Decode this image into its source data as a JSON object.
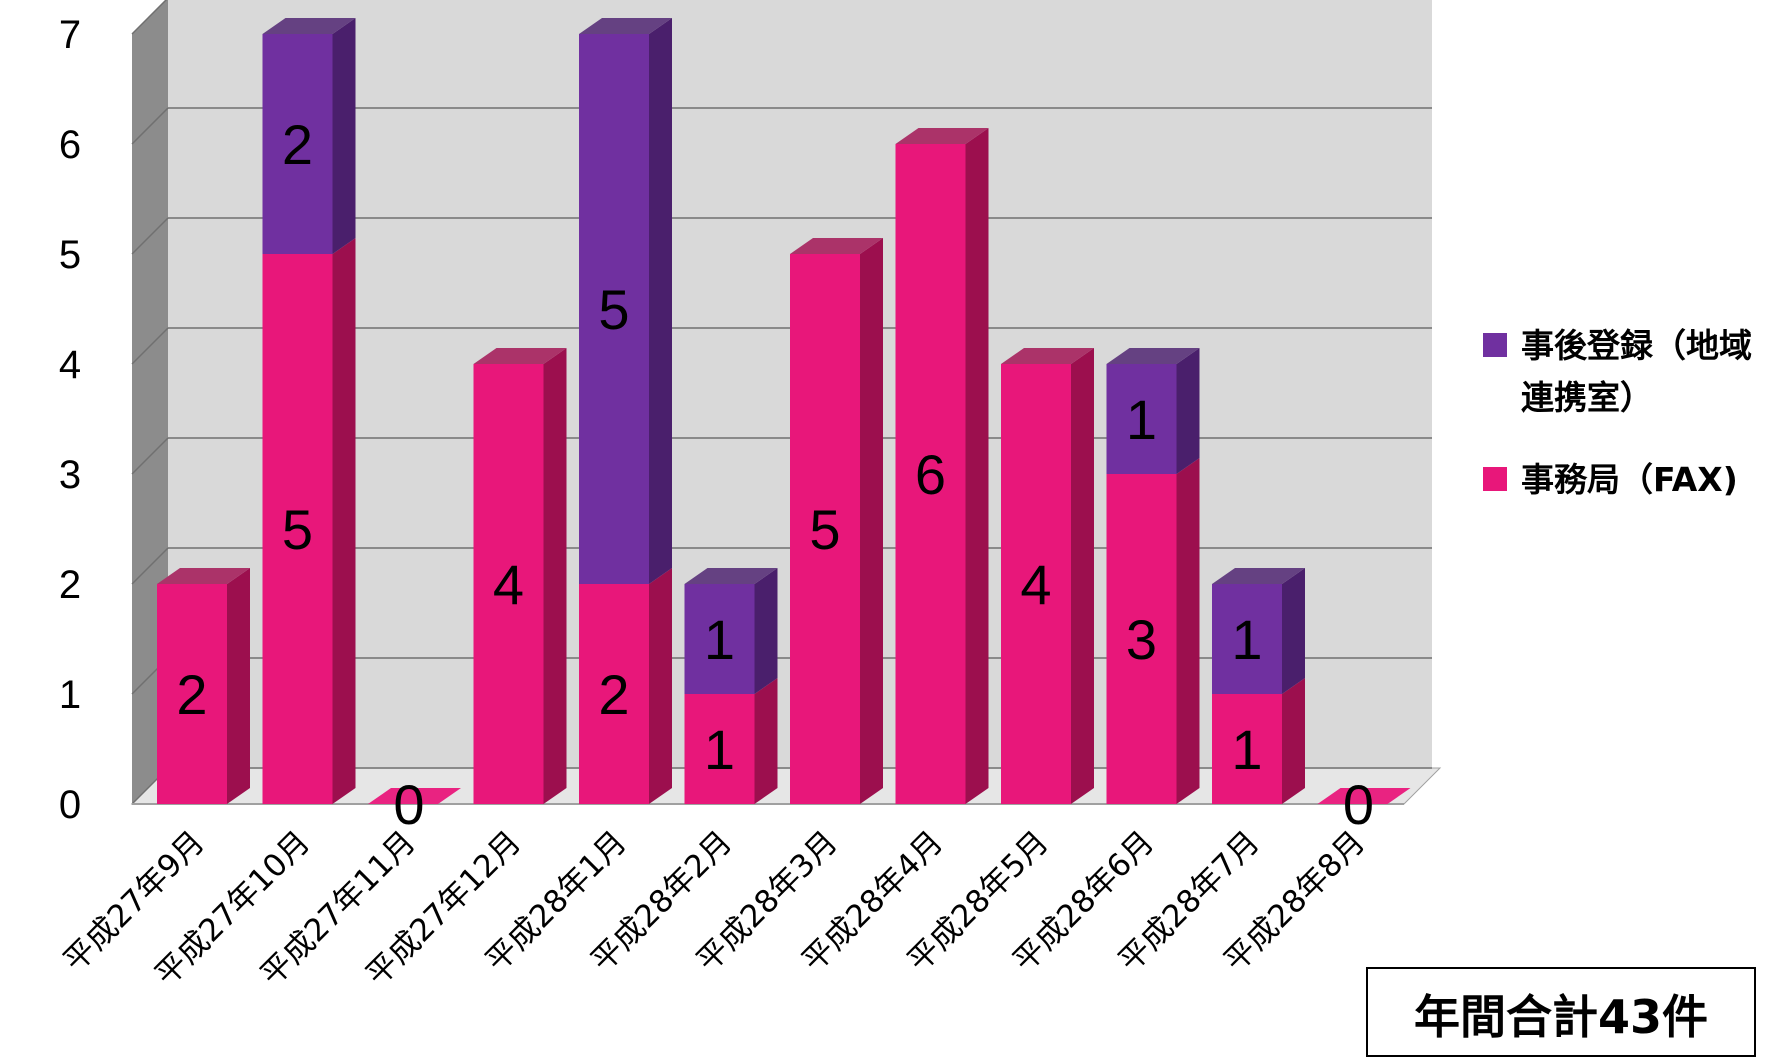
{
  "chart_data": {
    "type": "bar",
    "stacked": true,
    "three_d": true,
    "categories": [
      "平成27年9月",
      "平成27年10月",
      "平成27年11月",
      "平成27年12月",
      "平成28年1月",
      "平成28年2月",
      "平成28年3月",
      "平成28年4月",
      "平成28年5月",
      "平成28年6月",
      "平成28年7月",
      "平成28年8月"
    ],
    "series": [
      {
        "name": "事務局（FAX)",
        "color": "#e8177a",
        "side_color": "#9c0f4e",
        "values": [
          2,
          5,
          0,
          4,
          2,
          1,
          5,
          6,
          4,
          3,
          1,
          0
        ]
      },
      {
        "name": "事後登録（地域連携室）",
        "color": "#7030a0",
        "side_color": "#4a1f6c",
        "values": [
          0,
          2,
          0,
          0,
          5,
          1,
          0,
          0,
          0,
          1,
          1,
          0
        ]
      }
    ],
    "ylim": [
      0,
      7
    ],
    "yticks": [
      0,
      1,
      2,
      3,
      4,
      5,
      6,
      7
    ],
    "grid": true,
    "legend_position": "right",
    "xlabel": "",
    "ylabel": "",
    "wall_color": "#d9d9d9"
  },
  "legend": {
    "series_2_label": "事後登録（地域連携室）",
    "series_1_label": "事務局（FAX)"
  },
  "annotation": {
    "total_label": "年間合計43件"
  }
}
